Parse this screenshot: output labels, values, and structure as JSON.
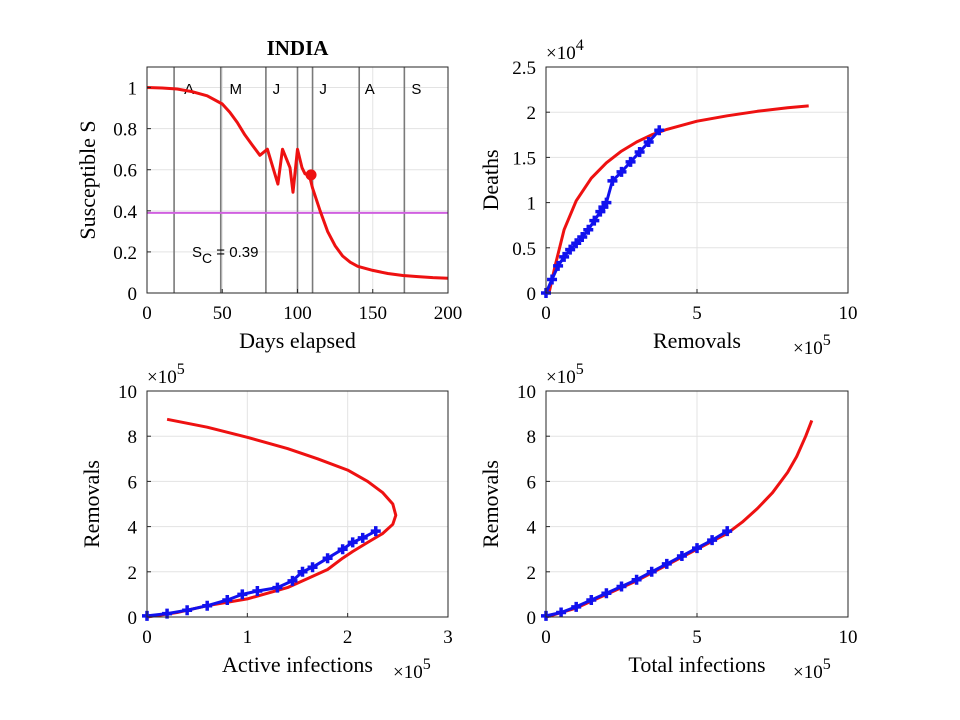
{
  "chart_data": [
    {
      "type": "line",
      "title": "INDIA",
      "xlabel": "Days elapsed",
      "ylabel": "Susceptible  S",
      "xlim": [
        0,
        200
      ],
      "ylim": [
        0,
        1.1
      ],
      "xticks": [
        0,
        50,
        100,
        150,
        200
      ],
      "yticks": [
        0,
        0.2,
        0.4,
        0.6,
        0.8,
        1
      ],
      "xtick_labels": [
        "0",
        "50",
        "100",
        "150",
        "200"
      ],
      "ytick_labels": [
        "0",
        "0.2",
        "0.4",
        "0.6",
        "0.8",
        "1"
      ],
      "grid": true,
      "month_lines": [
        18,
        49,
        79,
        100,
        110,
        141,
        171
      ],
      "months": [
        {
          "label": "A",
          "x": 28
        },
        {
          "label": "M",
          "x": 59
        },
        {
          "label": "J",
          "x": 86
        },
        {
          "label": "J",
          "x": 117
        },
        {
          "label": "A",
          "x": 148
        },
        {
          "label": "S",
          "x": 179
        }
      ],
      "threshold": {
        "value": 0.39,
        "color": "#d060e0",
        "label_main": "S",
        "label_sub": "C",
        "label_tail": " = 0.39"
      },
      "series": [
        {
          "color": "#ee1111",
          "x": [
            0,
            10,
            20,
            30,
            40,
            50,
            55,
            60,
            65,
            70,
            75,
            80,
            87,
            90,
            95,
            97,
            100,
            103,
            105,
            108,
            110,
            115,
            120,
            125,
            130,
            135,
            140,
            150,
            160,
            170,
            180,
            190,
            200
          ],
          "y": [
            1.0,
            0.998,
            0.993,
            0.98,
            0.96,
            0.92,
            0.88,
            0.83,
            0.77,
            0.72,
            0.67,
            0.7,
            0.53,
            0.7,
            0.61,
            0.49,
            0.7,
            0.61,
            0.58,
            0.57,
            0.51,
            0.4,
            0.3,
            0.23,
            0.18,
            0.15,
            0.13,
            0.11,
            0.095,
            0.085,
            0.08,
            0.075,
            0.072
          ]
        }
      ],
      "marker": {
        "x": 109,
        "y": 0.575,
        "color": "#ee1111"
      }
    },
    {
      "type": "line",
      "title": "",
      "xlabel": "Removals",
      "ylabel": "Deaths",
      "xlim": [
        0,
        10
      ],
      "ylim": [
        0,
        2.5
      ],
      "x_multiplier": "×10",
      "x_exponent": "5",
      "y_multiplier": "×10",
      "y_exponent": "4",
      "xticks": [
        0,
        5,
        10
      ],
      "yticks": [
        0,
        0.5,
        1,
        1.5,
        2,
        2.5
      ],
      "xtick_labels": [
        "0",
        "5",
        "10"
      ],
      "ytick_labels": [
        "0",
        "0.5",
        "1",
        "1.5",
        "2",
        "2.5"
      ],
      "grid": true,
      "series": [
        {
          "color": "#ee1111",
          "x": [
            0.1,
            0.3,
            0.6,
            1.0,
            1.5,
            2.0,
            2.5,
            3.0,
            3.5,
            4.0,
            5.0,
            6.0,
            7.0,
            8.0,
            8.7
          ],
          "y": [
            0.0,
            0.3,
            0.7,
            1.02,
            1.27,
            1.44,
            1.57,
            1.67,
            1.75,
            1.81,
            1.9,
            1.96,
            2.01,
            2.05,
            2.07
          ]
        },
        {
          "color": "#1111ee",
          "x": [
            0.0,
            0.2,
            0.4,
            0.6,
            0.8,
            1.0,
            1.2,
            1.4,
            1.6,
            1.8,
            1.9,
            2.0,
            2.2,
            2.5,
            2.8,
            3.1,
            3.4,
            3.75
          ],
          "y": [
            0.0,
            0.15,
            0.3,
            0.4,
            0.48,
            0.55,
            0.62,
            0.7,
            0.8,
            0.9,
            0.95,
            1.0,
            1.24,
            1.34,
            1.45,
            1.56,
            1.67,
            1.8
          ]
        }
      ]
    },
    {
      "type": "line",
      "title": "",
      "xlabel": "Active infections",
      "ylabel": "Removals",
      "xlim": [
        0,
        3
      ],
      "ylim": [
        0,
        10
      ],
      "x_multiplier": "×10",
      "x_exponent": "5",
      "y_multiplier": "×10",
      "y_exponent": "5",
      "xticks": [
        0,
        1,
        2,
        3
      ],
      "yticks": [
        0,
        2,
        4,
        6,
        8,
        10
      ],
      "xtick_labels": [
        "0",
        "1",
        "2",
        "3"
      ],
      "ytick_labels": [
        "0",
        "2",
        "4",
        "6",
        "8",
        "10"
      ],
      "grid": true,
      "series": [
        {
          "color": "#ee1111",
          "x": [
            0.0,
            0.3,
            0.6,
            1.0,
            1.4,
            1.6,
            1.8,
            1.95,
            2.05,
            2.2,
            2.35,
            2.45,
            2.48,
            2.45,
            2.35,
            2.2,
            2.0,
            1.7,
            1.4,
            1.0,
            0.6,
            0.2
          ],
          "y": [
            0.0,
            0.2,
            0.5,
            0.8,
            1.3,
            1.7,
            2.1,
            2.6,
            2.9,
            3.3,
            3.7,
            4.1,
            4.5,
            5.0,
            5.5,
            6.0,
            6.5,
            7.0,
            7.45,
            7.95,
            8.4,
            8.75
          ]
        },
        {
          "color": "#1111ee",
          "x": [
            0.0,
            0.2,
            0.4,
            0.6,
            0.8,
            0.95,
            1.1,
            1.3,
            1.45,
            1.55,
            1.65,
            1.8,
            1.95,
            2.05,
            2.15,
            2.28
          ],
          "y": [
            0.05,
            0.15,
            0.3,
            0.5,
            0.75,
            1.0,
            1.15,
            1.3,
            1.6,
            2.0,
            2.2,
            2.6,
            3.0,
            3.3,
            3.5,
            3.8
          ]
        }
      ]
    },
    {
      "type": "line",
      "title": "",
      "xlabel": "Total infections",
      "ylabel": "Removals",
      "xlim": [
        0,
        10
      ],
      "ylim": [
        0,
        10
      ],
      "x_multiplier": "×10",
      "x_exponent": "5",
      "y_multiplier": "×10",
      "y_exponent": "5",
      "xticks": [
        0,
        5,
        10
      ],
      "yticks": [
        0,
        2,
        4,
        6,
        8,
        10
      ],
      "xtick_labels": [
        "0",
        "5",
        "10"
      ],
      "ytick_labels": [
        "0",
        "2",
        "4",
        "6",
        "8",
        "10"
      ],
      "grid": true,
      "series": [
        {
          "color": "#ee1111",
          "x": [
            0.0,
            1.0,
            2.0,
            3.0,
            4.0,
            5.0,
            6.0,
            6.5,
            7.0,
            7.5,
            8.0,
            8.3,
            8.6,
            8.8
          ],
          "y": [
            0.0,
            0.4,
            1.0,
            1.6,
            2.3,
            3.0,
            3.7,
            4.2,
            4.8,
            5.5,
            6.4,
            7.1,
            8.0,
            8.7
          ]
        },
        {
          "color": "#1111ee",
          "x": [
            0.0,
            0.5,
            1.0,
            1.5,
            2.0,
            2.5,
            3.0,
            3.5,
            4.0,
            4.5,
            5.0,
            5.5,
            6.0
          ],
          "y": [
            0.05,
            0.2,
            0.45,
            0.75,
            1.05,
            1.35,
            1.65,
            2.0,
            2.35,
            2.7,
            3.05,
            3.4,
            3.8
          ]
        }
      ]
    }
  ]
}
